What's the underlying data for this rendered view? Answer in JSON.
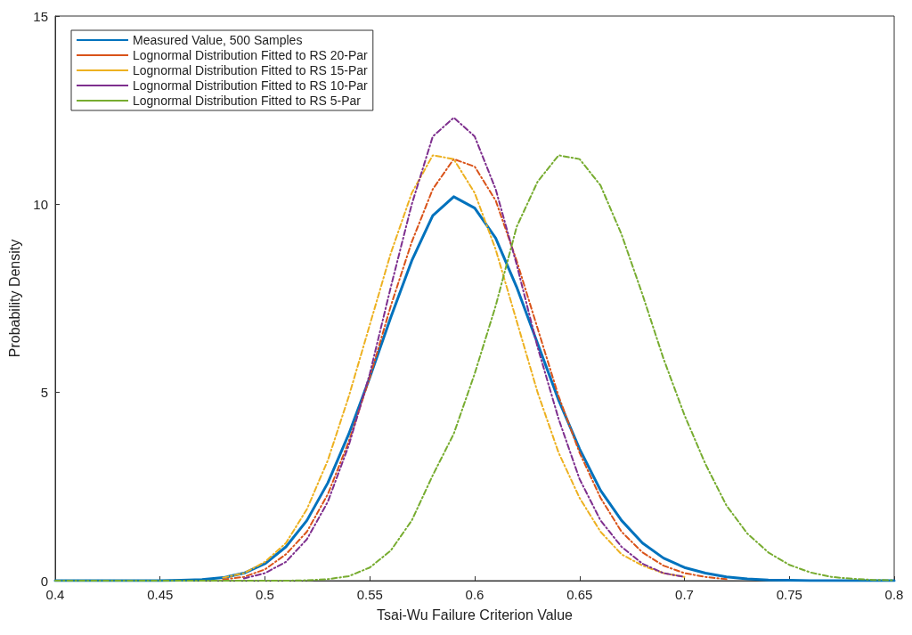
{
  "chart_data": {
    "type": "line",
    "xlabel": "Tsai-Wu Failure Criterion Value",
    "ylabel": "Probability Density",
    "x": [
      0.4,
      0.41,
      0.42,
      0.43,
      0.44,
      0.45,
      0.46,
      0.47,
      0.48,
      0.49,
      0.5,
      0.51,
      0.52,
      0.53,
      0.54,
      0.55,
      0.56,
      0.57,
      0.58,
      0.59,
      0.6,
      0.61,
      0.62,
      0.63,
      0.64,
      0.65,
      0.66,
      0.67,
      0.68,
      0.69,
      0.7,
      0.71,
      0.72,
      0.73,
      0.74,
      0.75,
      0.76,
      0.77,
      0.78,
      0.79,
      0.8
    ],
    "series": [
      {
        "name": "Measured Value, 500 Samples",
        "color": "#0072bd",
        "line_style": "solid",
        "values": [
          0,
          0,
          0,
          0,
          0,
          0,
          0.01,
          0.03,
          0.08,
          0.2,
          0.45,
          0.9,
          1.6,
          2.6,
          3.9,
          5.4,
          7.0,
          8.5,
          9.7,
          10.2,
          9.9,
          9.1,
          7.8,
          6.3,
          4.8,
          3.5,
          2.4,
          1.6,
          1.0,
          0.6,
          0.35,
          0.2,
          0.1,
          0.05,
          0.02,
          0.01,
          0,
          0,
          0,
          0,
          0
        ]
      },
      {
        "name": "Lognormal Distribution Fitted to RS 20-Par",
        "color": "#d95319",
        "line_style": "dashed",
        "values": [
          null,
          null,
          null,
          null,
          null,
          null,
          null,
          null,
          0.03,
          0.1,
          0.3,
          0.7,
          1.3,
          2.3,
          3.7,
          5.4,
          7.3,
          9.0,
          10.4,
          11.2,
          11.0,
          10.1,
          8.5,
          6.7,
          4.9,
          3.4,
          2.2,
          1.3,
          0.75,
          0.4,
          0.2,
          0.1,
          0.04,
          null,
          null,
          null,
          null,
          null,
          null,
          null,
          null
        ]
      },
      {
        "name": "Lognormal Distribution Fitted to RS 15-Par",
        "color": "#edb120",
        "line_style": "dashed",
        "values": [
          null,
          null,
          null,
          null,
          null,
          null,
          null,
          null,
          0.08,
          0.2,
          0.5,
          1.0,
          1.9,
          3.2,
          4.9,
          6.8,
          8.7,
          10.3,
          11.3,
          11.2,
          10.3,
          8.8,
          6.9,
          5.0,
          3.4,
          2.2,
          1.3,
          0.7,
          0.4,
          0.2,
          0.1,
          null,
          null,
          null,
          null,
          null,
          null,
          null,
          null,
          null,
          null
        ]
      },
      {
        "name": "Lognormal Distribution Fitted to RS 10-Par",
        "color": "#7e2f8e",
        "line_style": "dashed",
        "values": [
          null,
          null,
          null,
          null,
          null,
          null,
          null,
          null,
          null,
          0.06,
          0.2,
          0.5,
          1.1,
          2.1,
          3.6,
          5.5,
          7.8,
          10.0,
          11.8,
          12.3,
          11.8,
          10.4,
          8.4,
          6.2,
          4.3,
          2.7,
          1.6,
          0.9,
          0.45,
          0.2,
          0.1,
          null,
          null,
          null,
          null,
          null,
          null,
          null,
          null,
          null,
          null
        ]
      },
      {
        "name": "Lognormal Distribution Fitted to RS 5-Par",
        "color": "#77ac30",
        "line_style": "dashed",
        "values": [
          0,
          0,
          0,
          0,
          0,
          0,
          0,
          0,
          0,
          0,
          0,
          0,
          0.01,
          0.04,
          0.12,
          0.35,
          0.8,
          1.6,
          2.8,
          3.9,
          5.5,
          7.3,
          9.4,
          10.6,
          11.3,
          11.2,
          10.5,
          9.2,
          7.6,
          5.9,
          4.4,
          3.1,
          2.0,
          1.25,
          0.75,
          0.42,
          0.22,
          0.1,
          0.05,
          0.02,
          0.01
        ]
      }
    ],
    "xlim": [
      0.4,
      0.8
    ],
    "xticks": [
      0.4,
      0.45,
      0.5,
      0.55,
      0.6,
      0.65,
      0.7,
      0.75,
      0.8
    ],
    "ylim": [
      0,
      15
    ],
    "yticks": [
      0,
      5,
      10,
      15
    ],
    "grid": false,
    "legend": "top left",
    "marker": "none"
  }
}
